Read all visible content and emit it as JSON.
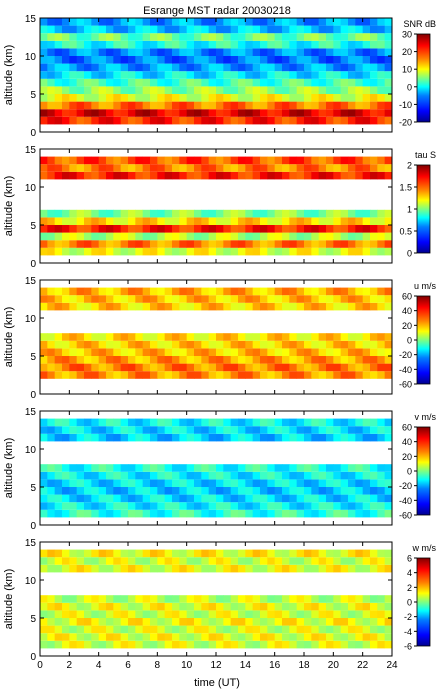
{
  "title": "Esrange MST radar 20030218",
  "xlabel": "time (UT)",
  "ylabel": "altitude (km)",
  "x_ticks": [
    0,
    2,
    4,
    6,
    8,
    10,
    12,
    14,
    16,
    18,
    20,
    22,
    24
  ],
  "y_ticks": [
    0,
    5,
    10,
    15
  ],
  "colors": {
    "jet": [
      "#00008f",
      "#0000ff",
      "#0080ff",
      "#00ffff",
      "#80ff80",
      "#ffff00",
      "#ff8000",
      "#ff0000",
      "#800000"
    ]
  },
  "chart_data": [
    {
      "type": "heatmap",
      "id": "snr",
      "title": "Esrange MST radar 20030218",
      "xlabel": "",
      "ylabel": "altitude (km)",
      "xlim": [
        0,
        24
      ],
      "ylim": [
        0,
        15
      ],
      "colorbar": {
        "label": "SNR dB",
        "range": [
          -20,
          30
        ],
        "ticks": [
          -20,
          -10,
          0,
          10,
          20,
          30
        ]
      },
      "profile": [
        {
          "altitude": 1.5,
          "value": 22
        },
        {
          "altitude": 2.5,
          "value": 25
        },
        {
          "altitude": 3.5,
          "value": 18
        },
        {
          "altitude": 4.5,
          "value": 10
        },
        {
          "altitude": 5.5,
          "value": 6
        },
        {
          "altitude": 6.5,
          "value": 2
        },
        {
          "altitude": 7.5,
          "value": -2
        },
        {
          "altitude": 8.5,
          "value": -6
        },
        {
          "altitude": 9.5,
          "value": -8
        },
        {
          "altitude": 10.5,
          "value": -7
        },
        {
          "altitude": 11.5,
          "value": 0
        },
        {
          "altitude": 12.5,
          "value": 4
        },
        {
          "altitude": 13.5,
          "value": -4
        },
        {
          "altitude": 14.5,
          "value": -6
        }
      ]
    },
    {
      "type": "heatmap",
      "id": "tau",
      "xlim": [
        0,
        24
      ],
      "ylim": [
        0,
        15
      ],
      "ylabel": "altitude (km)",
      "colorbar": {
        "label": "tau S",
        "range": [
          0,
          2
        ],
        "ticks": [
          0,
          0.5,
          1,
          1.5,
          2
        ]
      },
      "profile": [
        {
          "altitude": 1.5,
          "value": 1.2
        },
        {
          "altitude": 2.5,
          "value": 1.5
        },
        {
          "altitude": 3.5,
          "value": 1.1
        },
        {
          "altitude": 4.5,
          "value": 1.7
        },
        {
          "altitude": 5.5,
          "value": 1.3
        },
        {
          "altitude": 6.5,
          "value": 1.0
        },
        {
          "altitude": 11.5,
          "value": 1.7
        },
        {
          "altitude": 12.5,
          "value": 1.5
        },
        {
          "altitude": 13.5,
          "value": 1.6
        }
      ]
    },
    {
      "type": "heatmap",
      "id": "u",
      "xlim": [
        0,
        24
      ],
      "ylim": [
        0,
        15
      ],
      "ylabel": "altitude (km)",
      "colorbar": {
        "label": "u m/s",
        "range": [
          -60,
          60
        ],
        "ticks": [
          -60,
          -40,
          -20,
          0,
          20,
          40,
          60
        ]
      },
      "profile": [
        {
          "altitude": 2.5,
          "value": 28
        },
        {
          "altitude": 3.5,
          "value": 30
        },
        {
          "altitude": 4.5,
          "value": 26
        },
        {
          "altitude": 5.5,
          "value": 22
        },
        {
          "altitude": 6.5,
          "value": 20
        },
        {
          "altitude": 7.5,
          "value": 18
        },
        {
          "altitude": 11.5,
          "value": 20
        },
        {
          "altitude": 12.5,
          "value": 22
        },
        {
          "altitude": 13.5,
          "value": 24
        }
      ]
    },
    {
      "type": "heatmap",
      "id": "v",
      "xlim": [
        0,
        24
      ],
      "ylim": [
        0,
        15
      ],
      "ylabel": "altitude (km)",
      "colorbar": {
        "label": "v m/s",
        "range": [
          -60,
          60
        ],
        "ticks": [
          -60,
          -40,
          -20,
          0,
          20,
          40,
          60
        ]
      },
      "profile": [
        {
          "altitude": 1.5,
          "value": -10
        },
        {
          "altitude": 2.5,
          "value": -15
        },
        {
          "altitude": 3.5,
          "value": -18
        },
        {
          "altitude": 4.5,
          "value": -20
        },
        {
          "altitude": 5.5,
          "value": -18
        },
        {
          "altitude": 6.5,
          "value": -15
        },
        {
          "altitude": 7.5,
          "value": -12
        },
        {
          "altitude": 11.5,
          "value": -20
        },
        {
          "altitude": 12.5,
          "value": -18
        },
        {
          "altitude": 13.5,
          "value": -15
        }
      ]
    },
    {
      "type": "heatmap",
      "id": "w",
      "xlim": [
        0,
        24
      ],
      "ylim": [
        0,
        15
      ],
      "xlabel": "time (UT)",
      "ylabel": "altitude (km)",
      "colorbar": {
        "label": "w m/s",
        "range": [
          -6,
          6
        ],
        "ticks": [
          -6,
          -4,
          -2,
          0,
          2,
          4,
          6
        ]
      },
      "profile": [
        {
          "altitude": 1.5,
          "value": 1.0
        },
        {
          "altitude": 2.5,
          "value": 1.2
        },
        {
          "altitude": 3.5,
          "value": 1.0
        },
        {
          "altitude": 4.5,
          "value": 1.3
        },
        {
          "altitude": 5.5,
          "value": 1.0
        },
        {
          "altitude": 6.5,
          "value": 1.2
        },
        {
          "altitude": 7.5,
          "value": 0.8
        },
        {
          "altitude": 11.5,
          "value": 1.2
        },
        {
          "altitude": 12.5,
          "value": 1.0
        },
        {
          "altitude": 13.5,
          "value": 1.4
        }
      ]
    }
  ]
}
